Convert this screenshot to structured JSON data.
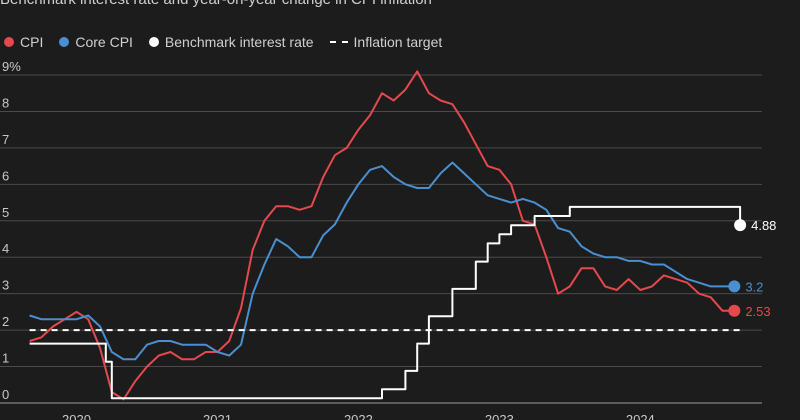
{
  "chart_data": {
    "type": "line",
    "title": "Benchmark interest rate and year-on-year change in CPI inflation",
    "xlabel": "",
    "ylabel": "",
    "xlim": [
      2019.67,
      2024.92
    ],
    "ylim": [
      0,
      9
    ],
    "y_ticks": [
      0,
      1,
      2,
      3,
      4,
      5,
      6,
      7,
      8,
      9
    ],
    "y_tick_labels": [
      "0",
      "1",
      "2",
      "3",
      "4",
      "5",
      "6",
      "7",
      "8",
      "9%"
    ],
    "x_ticks": [
      2020,
      2021,
      2022,
      2023,
      2024
    ],
    "x_tick_labels": [
      "2020",
      "2021",
      "2022",
      "2023",
      "2024"
    ],
    "grid": true,
    "legend": "top-left",
    "colors": {
      "cpi": "#e5484d",
      "core_cpi": "#4a8fd0",
      "benchmark": "#ffffff",
      "target": "#ffffff",
      "background": "#1c1c1c",
      "grid": "#4a4a4a"
    },
    "series": [
      {
        "name": "CPI",
        "key": "cpi",
        "end_label": "2.53",
        "x": [
          2019.667,
          2019.75,
          2019.833,
          2019.917,
          2020.0,
          2020.083,
          2020.167,
          2020.25,
          2020.333,
          2020.417,
          2020.5,
          2020.583,
          2020.667,
          2020.75,
          2020.833,
          2020.917,
          2021.0,
          2021.083,
          2021.167,
          2021.25,
          2021.333,
          2021.417,
          2021.5,
          2021.583,
          2021.667,
          2021.75,
          2021.833,
          2021.917,
          2022.0,
          2022.083,
          2022.167,
          2022.25,
          2022.333,
          2022.417,
          2022.5,
          2022.583,
          2022.667,
          2022.75,
          2022.833,
          2022.917,
          2023.0,
          2023.083,
          2023.167,
          2023.25,
          2023.333,
          2023.417,
          2023.5,
          2023.583,
          2023.667,
          2023.75,
          2023.833,
          2023.917,
          2024.0,
          2024.083,
          2024.167,
          2024.25,
          2024.333,
          2024.417,
          2024.5,
          2024.583,
          2024.667
        ],
        "values": [
          1.7,
          1.8,
          2.1,
          2.3,
          2.5,
          2.3,
          1.5,
          0.3,
          0.1,
          0.6,
          1.0,
          1.3,
          1.4,
          1.2,
          1.2,
          1.4,
          1.4,
          1.7,
          2.6,
          4.2,
          5.0,
          5.4,
          5.4,
          5.3,
          5.4,
          6.2,
          6.8,
          7.0,
          7.5,
          7.9,
          8.5,
          8.3,
          8.6,
          9.1,
          8.5,
          8.3,
          8.2,
          7.7,
          7.1,
          6.5,
          6.4,
          6.0,
          5.0,
          4.9,
          4.0,
          3.0,
          3.2,
          3.7,
          3.7,
          3.2,
          3.1,
          3.4,
          3.1,
          3.2,
          3.5,
          3.4,
          3.3,
          3.0,
          2.9,
          2.53,
          2.53
        ],
        "marker_x": 2024.667,
        "marker_y": 2.53
      },
      {
        "name": "Core CPI",
        "key": "core_cpi",
        "end_label": "3.2",
        "x": [
          2019.667,
          2019.75,
          2019.833,
          2019.917,
          2020.0,
          2020.083,
          2020.167,
          2020.25,
          2020.333,
          2020.417,
          2020.5,
          2020.583,
          2020.667,
          2020.75,
          2020.833,
          2020.917,
          2021.0,
          2021.083,
          2021.167,
          2021.25,
          2021.333,
          2021.417,
          2021.5,
          2021.583,
          2021.667,
          2021.75,
          2021.833,
          2021.917,
          2022.0,
          2022.083,
          2022.167,
          2022.25,
          2022.333,
          2022.417,
          2022.5,
          2022.583,
          2022.667,
          2022.75,
          2022.833,
          2022.917,
          2023.0,
          2023.083,
          2023.167,
          2023.25,
          2023.333,
          2023.417,
          2023.5,
          2023.583,
          2023.667,
          2023.75,
          2023.833,
          2023.917,
          2024.0,
          2024.083,
          2024.167,
          2024.25,
          2024.333,
          2024.417,
          2024.5,
          2024.583,
          2024.667
        ],
        "values": [
          2.4,
          2.3,
          2.3,
          2.3,
          2.3,
          2.4,
          2.1,
          1.4,
          1.2,
          1.2,
          1.6,
          1.7,
          1.7,
          1.6,
          1.6,
          1.6,
          1.4,
          1.3,
          1.6,
          3.0,
          3.8,
          4.5,
          4.3,
          4.0,
          4.0,
          4.6,
          4.9,
          5.5,
          6.0,
          6.4,
          6.5,
          6.2,
          6.0,
          5.9,
          5.9,
          6.3,
          6.6,
          6.3,
          6.0,
          5.7,
          5.6,
          5.5,
          5.6,
          5.5,
          5.3,
          4.8,
          4.7,
          4.3,
          4.1,
          4.0,
          4.0,
          3.9,
          3.9,
          3.8,
          3.8,
          3.6,
          3.4,
          3.3,
          3.2,
          3.2,
          3.2
        ],
        "marker_x": 2024.667,
        "marker_y": 3.2
      },
      {
        "name": "Benchmark interest rate",
        "key": "benchmark",
        "step": true,
        "end_label": "4.88",
        "x": [
          2019.667,
          2020.167,
          2020.208,
          2020.25,
          2021.0,
          2022.0,
          2022.167,
          2022.333,
          2022.417,
          2022.5,
          2022.667,
          2022.833,
          2022.917,
          2023.0,
          2023.083,
          2023.25,
          2023.333,
          2023.5,
          2024.667,
          2024.708
        ],
        "values": [
          1.63,
          1.63,
          1.13,
          0.13,
          0.13,
          0.13,
          0.38,
          0.88,
          1.63,
          2.38,
          3.13,
          3.88,
          4.38,
          4.63,
          4.88,
          5.13,
          5.13,
          5.38,
          5.38,
          4.88
        ],
        "marker_x": 2024.708,
        "marker_y": 4.88
      },
      {
        "name": "Inflation target",
        "key": "target",
        "dashed": true,
        "x": [
          2019.667,
          2024.708
        ],
        "values": [
          2,
          2
        ]
      }
    ]
  }
}
